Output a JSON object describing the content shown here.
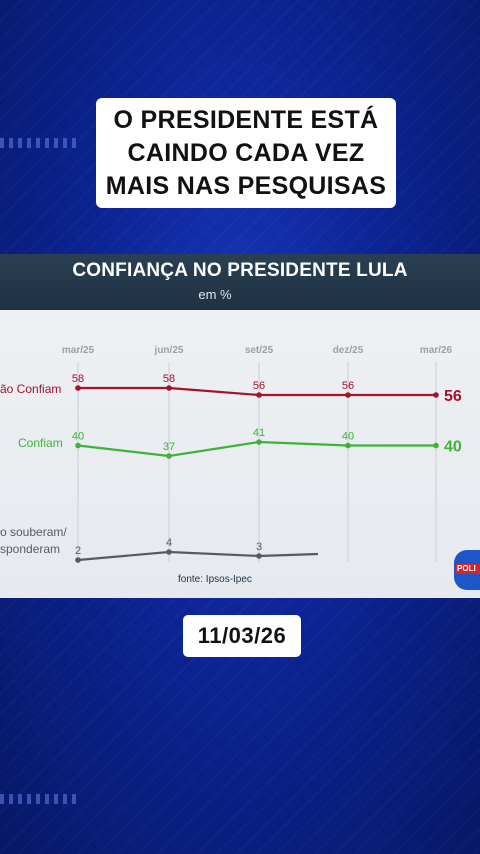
{
  "headline": {
    "text": "O PRESIDENTE ESTÁ\nCAINDO CADA VEZ\nMAIS NAS PESQUISAS"
  },
  "date_label": "11/03/26",
  "logo_text": "POLI",
  "colors": {
    "nao_confiam": "#a3132a",
    "confiam": "#3cb534",
    "nao_souberam": "#555b63",
    "background_blue": "#0c2393"
  },
  "chart_data": {
    "type": "line",
    "title": "CONFIANÇA NO PRESIDENTE LULA",
    "subtitle": "em %",
    "categories": [
      "mar/25",
      "jun/25",
      "set/25",
      "dez/25",
      "mar/26"
    ],
    "series": [
      {
        "name": "Não Confiam",
        "label_visible": "ão Confiam",
        "values": [
          58,
          58,
          56,
          56,
          56
        ],
        "final_label": "56"
      },
      {
        "name": "Confiam",
        "label_visible": "Confiam",
        "values": [
          40,
          37,
          41,
          40,
          40
        ],
        "final_label": "40"
      },
      {
        "name": "Não souberam/ Não responderam",
        "label_visible_1": "o souberam/",
        "label_visible_2": "sponderam",
        "values": [
          2,
          4,
          3,
          null,
          null
        ]
      }
    ],
    "source": "fonte: Ipsos-Ipec",
    "grid": "vertical"
  }
}
